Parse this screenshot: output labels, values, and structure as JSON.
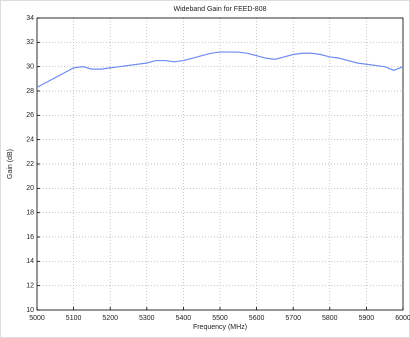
{
  "chart_data": {
    "type": "line",
    "title": "Wideband Gain for FEED-808",
    "x_label": "Frequency (MHz)",
    "y_label": "Gain (dB)",
    "x": [
      5000,
      5025,
      5050,
      5075,
      5100,
      5125,
      5150,
      5175,
      5200,
      5225,
      5250,
      5275,
      5300,
      5325,
      5350,
      5375,
      5400,
      5425,
      5450,
      5475,
      5500,
      5525,
      5550,
      5575,
      5600,
      5625,
      5650,
      5675,
      5700,
      5725,
      5750,
      5775,
      5800,
      5825,
      5850,
      5875,
      5900,
      5925,
      5950,
      5975,
      6000
    ],
    "series": [
      {
        "name": "Gain",
        "color": "#6f8cf0",
        "values": [
          28.3,
          28.7,
          29.1,
          29.5,
          29.9,
          30.0,
          29.8,
          29.8,
          29.9,
          30.0,
          30.1,
          30.2,
          30.3,
          30.5,
          30.5,
          30.4,
          30.5,
          30.7,
          30.9,
          31.1,
          31.2,
          31.2,
          31.2,
          31.1,
          30.9,
          30.7,
          30.6,
          30.8,
          31.0,
          31.1,
          31.1,
          31.0,
          30.8,
          30.7,
          30.5,
          30.3,
          30.2,
          30.1,
          30.0,
          29.7,
          30.0
        ]
      }
    ],
    "xlim": [
      5000,
      6000
    ],
    "xticks": [
      5000,
      5100,
      5200,
      5300,
      5400,
      5500,
      5600,
      5700,
      5800,
      5900,
      6000
    ],
    "ylim": [
      10,
      34
    ],
    "yticks": [
      10,
      12,
      14,
      16,
      18,
      20,
      22,
      24,
      26,
      28,
      30,
      32,
      34
    ],
    "grid": true
  }
}
